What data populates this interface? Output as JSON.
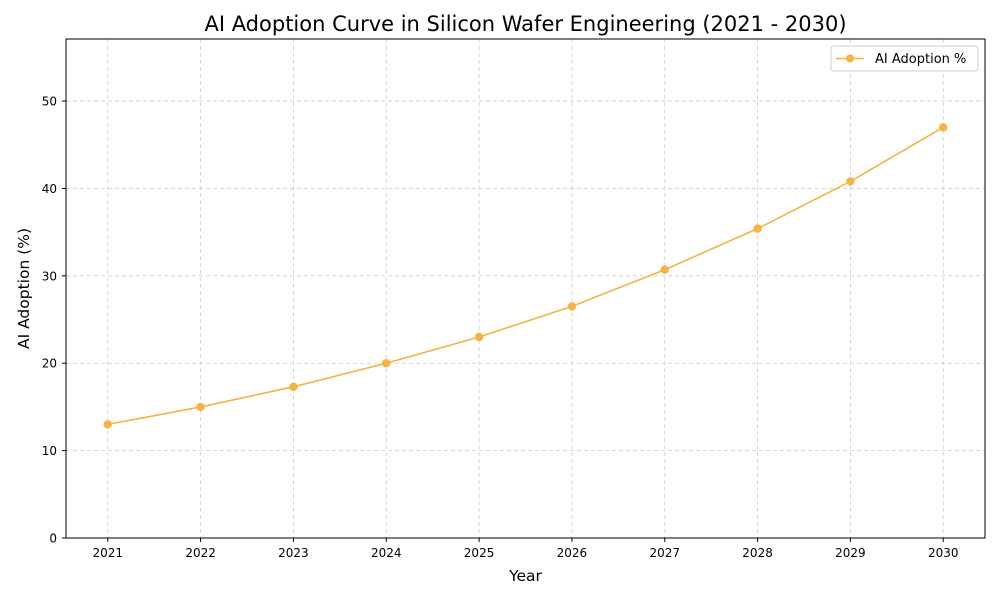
{
  "chart_data": {
    "type": "line",
    "title": "AI Adoption Curve in Silicon Wafer Engineering (2021 - 2030)",
    "xlabel": "Year",
    "ylabel": "AI Adoption (%)",
    "x": [
      2021,
      2022,
      2023,
      2024,
      2025,
      2026,
      2027,
      2028,
      2029,
      2030
    ],
    "series": [
      {
        "name": "AI Adoption %",
        "values": [
          13.0,
          15.0,
          17.3,
          20.0,
          23.0,
          26.5,
          30.7,
          35.4,
          40.8,
          47.0
        ],
        "color": "#f4b342",
        "marker": "circle"
      }
    ],
    "xticks": [
      "2021",
      "2022",
      "2023",
      "2024",
      "2025",
      "2026",
      "2027",
      "2028",
      "2029",
      "2030"
    ],
    "yticks": [
      "0",
      "10",
      "20",
      "30",
      "40",
      "50"
    ],
    "xlim": [
      2020.55,
      2030.45
    ],
    "ylim": [
      0,
      57.1
    ],
    "grid": true,
    "grid_style": "dashed",
    "legend": "top-right"
  }
}
